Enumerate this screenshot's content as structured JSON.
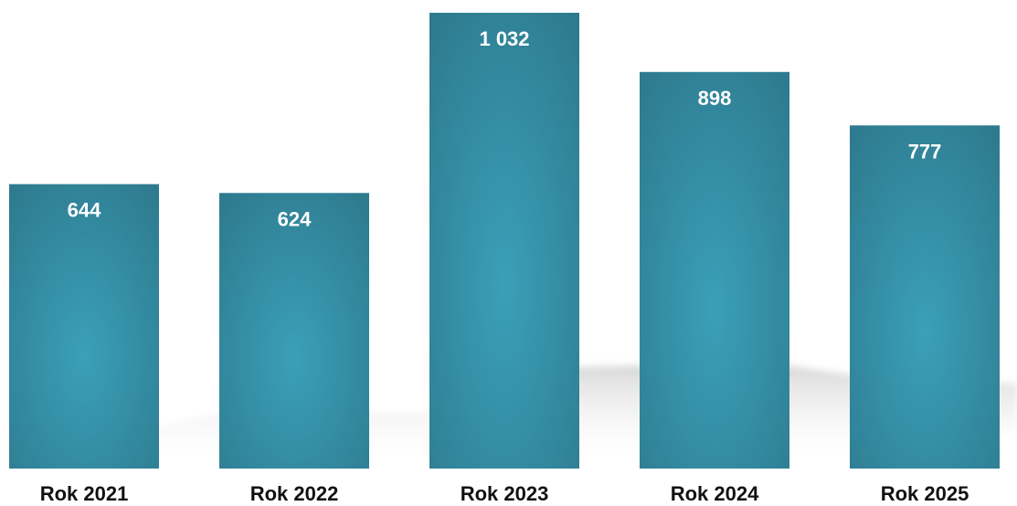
{
  "chart_data": {
    "type": "bar",
    "categories": [
      "Rok 2021",
      "Rok 2022",
      "Rok 2023",
      "Rok 2024",
      "Rok 2025"
    ],
    "values": [
      644,
      624,
      1032,
      898,
      777
    ],
    "value_labels": [
      "644",
      "624",
      "1 032",
      "898",
      "777"
    ],
    "title": "",
    "xlabel": "",
    "ylabel": "",
    "ylim": [
      0,
      1032
    ],
    "grid": false,
    "legend": "none",
    "colors": {
      "bar_edge": "#2e7a8e",
      "bar_center": "#3aa0b8",
      "value_label": "#ffffff",
      "tick_label": "#111111",
      "shadow": "#d6d6d6"
    }
  }
}
